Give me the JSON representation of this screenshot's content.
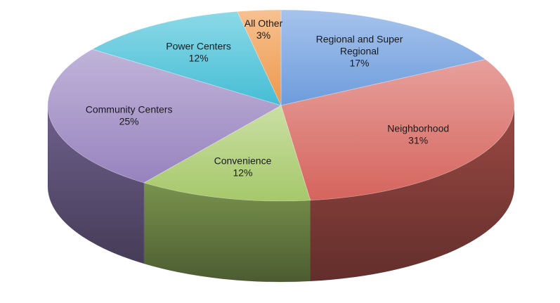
{
  "chart_data": {
    "type": "pie",
    "style": "3d",
    "title": "",
    "slices": [
      {
        "name": "Regional and Super Regional",
        "label_lines": [
          "Regional and Super",
          "Regional"
        ],
        "value": 17,
        "value_label": "17%",
        "color": "#6f9fe0"
      },
      {
        "name": "Neighborhood",
        "label_lines": [
          "Neighborhood"
        ],
        "value": 31,
        "value_label": "31%",
        "color": "#d9665f"
      },
      {
        "name": "Convenience",
        "label_lines": [
          "Convenience"
        ],
        "value": 12,
        "value_label": "12%",
        "color": "#a9cc6c"
      },
      {
        "name": "Community Centers",
        "label_lines": [
          "Community Centers"
        ],
        "value": 25,
        "value_label": "25%",
        "color": "#9a86c2"
      },
      {
        "name": "Power Centers",
        "label_lines": [
          "Power Centers"
        ],
        "value": 12,
        "value_label": "12%",
        "color": "#46c1d9"
      },
      {
        "name": "All Other",
        "label_lines": [
          "All Other"
        ],
        "value": 3,
        "value_label": "3%",
        "color": "#f29b4e"
      }
    ]
  }
}
